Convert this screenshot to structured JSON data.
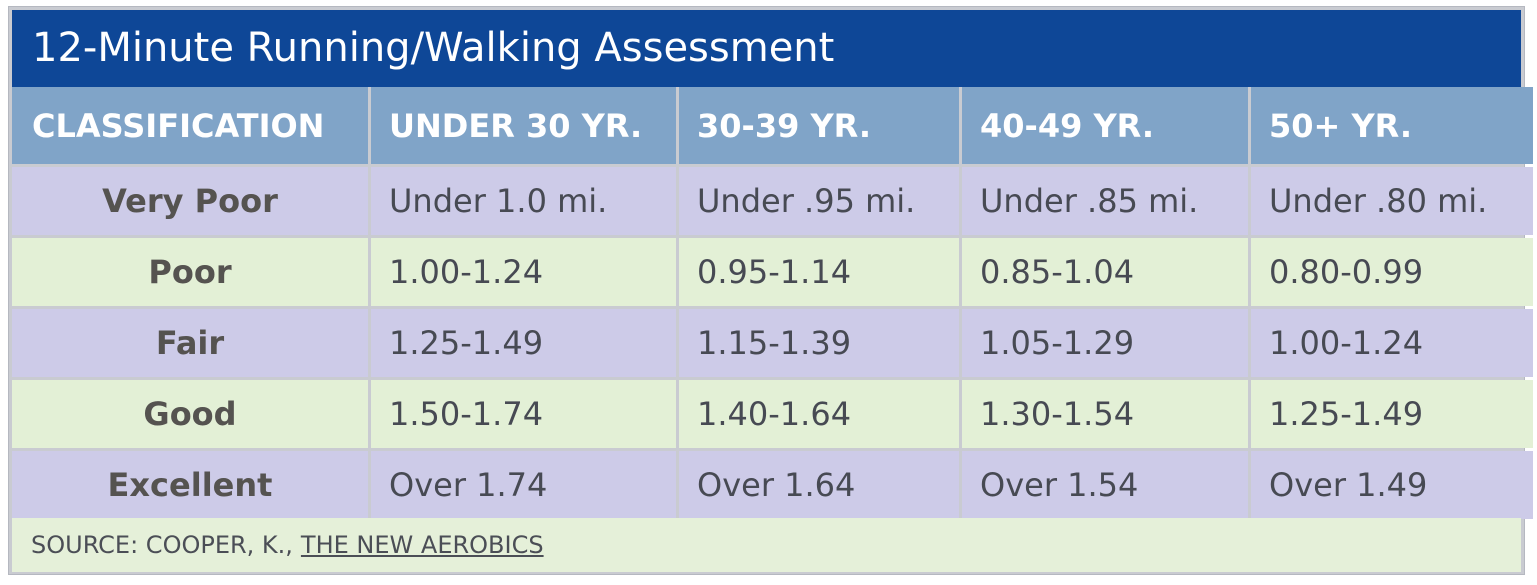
{
  "title": "12-Minute Running/Walking Assessment",
  "table": {
    "headers": [
      "CLASSIFICATION",
      "UNDER 30 YR.",
      "30-39 YR.",
      "40-49 YR.",
      "50+ YR."
    ],
    "rows": [
      {
        "label": "Very Poor",
        "values": [
          "Under 1.0 mi.",
          "Under .95 mi.",
          "Under .85 mi.",
          "Under .80 mi."
        ]
      },
      {
        "label": "Poor",
        "values": [
          "1.00-1.24",
          "0.95-1.14",
          "0.85-1.04",
          "0.80-0.99"
        ]
      },
      {
        "label": "Fair",
        "values": [
          "1.25-1.49",
          "1.15-1.39",
          "1.05-1.29",
          "1.00-1.24"
        ]
      },
      {
        "label": "Good",
        "values": [
          "1.50-1.74",
          "1.40-1.64",
          "1.30-1.54",
          "1.25-1.49"
        ]
      },
      {
        "label": "Excellent",
        "values": [
          "Over 1.74",
          "Over 1.64",
          "Over 1.54",
          "Over 1.49"
        ]
      }
    ]
  },
  "source": {
    "prefix": "SOURCE: COOPER, K.,",
    "title": "THE NEW AEROBICS"
  },
  "colors": {
    "title_bg": "#0e4797",
    "header_bg": "#80a4c8",
    "row_lavender": "#cdcbe8",
    "row_mint": "#e3f0d6"
  }
}
